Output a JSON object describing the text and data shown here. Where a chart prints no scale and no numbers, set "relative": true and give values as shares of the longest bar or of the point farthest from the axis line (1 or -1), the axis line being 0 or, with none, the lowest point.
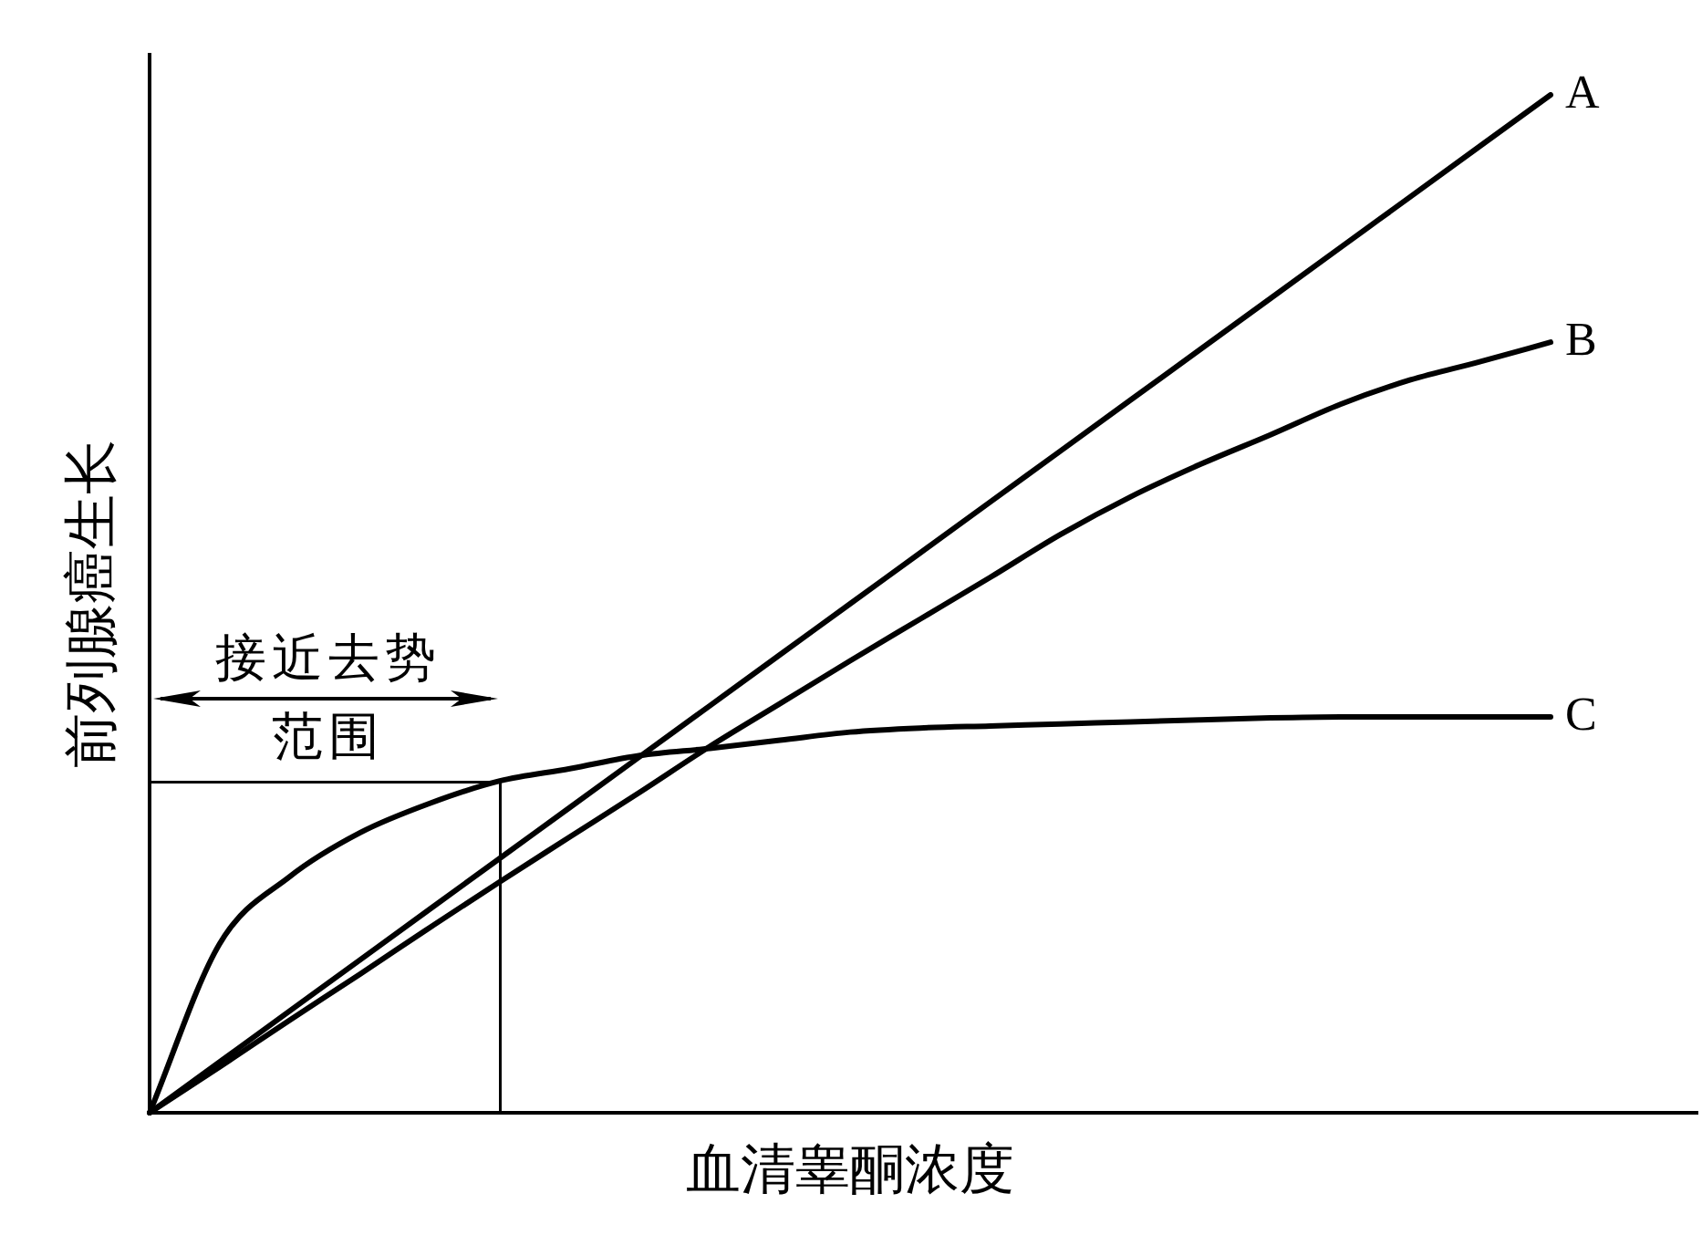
{
  "chart_data": {
    "type": "line",
    "xlabel": "血清睾酮浓度",
    "ylabel": "前列腺癌生长",
    "annotations": [
      "接近去势范围"
    ],
    "relative": true,
    "categories": [
      null,
      null,
      null,
      null,
      null,
      null,
      null,
      null,
      null,
      null,
      null,
      null,
      null,
      null,
      null,
      null,
      null,
      null,
      null,
      null,
      null
    ],
    "series": [
      {
        "name": "A",
        "color": "#000000",
        "values": [
          0,
          0.05,
          0.1,
          0.15,
          0.2,
          0.25,
          0.3,
          0.35,
          0.4,
          0.45,
          0.5,
          0.55,
          0.6,
          0.65,
          0.7,
          0.75,
          0.8,
          0.85,
          0.9,
          0.95,
          1
        ]
      },
      {
        "name": "B",
        "color": "#000000",
        "values": [
          0,
          0.045,
          0.091,
          0.136,
          0.182,
          0.227,
          0.271,
          0.315,
          0.36,
          0.402,
          0.444,
          0.485,
          0.526,
          0.568,
          0.605,
          0.637,
          0.666,
          0.696,
          0.72,
          0.738,
          0.757
        ]
      },
      {
        "name": "C",
        "color": "#000000",
        "values": [
          0,
          0.166,
          0.232,
          0.275,
          0.304,
          0.326,
          0.338,
          0.351,
          0.358,
          0.366,
          0.374,
          0.378,
          0.38,
          0.382,
          0.384,
          0.386,
          0.388,
          0.389,
          0.389,
          0.389,
          0.389
        ]
      }
    ],
    "legend": false,
    "grid": false,
    "marker": "none",
    "line_style": "solid"
  }
}
